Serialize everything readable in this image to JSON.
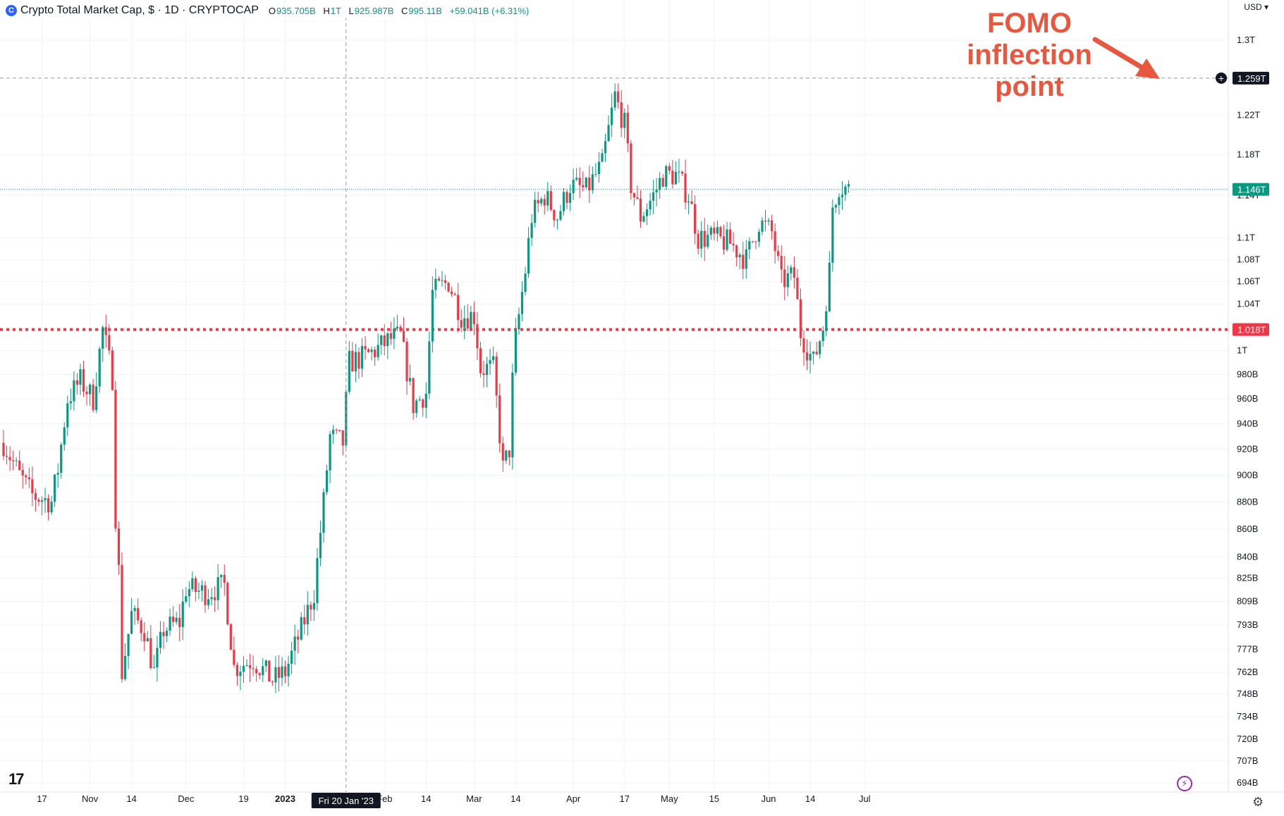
{
  "header": {
    "symbol_icon": "C",
    "title": "Crypto Total Market Cap, $ · 1D · CRYPTOCAP",
    "ohlc": [
      {
        "key": "O",
        "value": "935.705B"
      },
      {
        "key": "H",
        "value": "1T"
      },
      {
        "key": "L",
        "value": "925.987B"
      },
      {
        "key": "C",
        "value": "995.11B"
      },
      {
        "key": "",
        "value": "+59.041B (+6.31%)"
      }
    ]
  },
  "currency_label": "USD",
  "tradingview_logo": "17",
  "colors": {
    "up": "#089981",
    "down": "#f23645",
    "support": "#f23645",
    "annotation": "#e8573f"
  },
  "chart_data": {
    "type": "candlestick",
    "title": "Crypto Total Market Cap, $ · 1D · CRYPTOCAP",
    "xlabel": "",
    "ylabel": "",
    "date_range": [
      "2022-10-05",
      "2023-06-26"
    ],
    "ylim": [
      694,
      1300
    ],
    "y_scale": "log",
    "grid": true,
    "y_ticks": [
      {
        "value": 1300,
        "label": "1.3T"
      },
      {
        "value": 1220,
        "label": "1.22T"
      },
      {
        "value": 1180,
        "label": "1.18T"
      },
      {
        "value": 1140,
        "label": "1.14T"
      },
      {
        "value": 1100,
        "label": "1.1T"
      },
      {
        "value": 1080,
        "label": "1.08T"
      },
      {
        "value": 1060,
        "label": "1.06T"
      },
      {
        "value": 1040,
        "label": "1.04T"
      },
      {
        "value": 1000,
        "label": "1T"
      },
      {
        "value": 980,
        "label": "980B"
      },
      {
        "value": 960,
        "label": "960B"
      },
      {
        "value": 940,
        "label": "940B"
      },
      {
        "value": 920,
        "label": "920B"
      },
      {
        "value": 900,
        "label": "900B"
      },
      {
        "value": 880,
        "label": "880B"
      },
      {
        "value": 860,
        "label": "860B"
      },
      {
        "value": 840,
        "label": "840B"
      },
      {
        "value": 825,
        "label": "825B"
      },
      {
        "value": 809,
        "label": "809B"
      },
      {
        "value": 793,
        "label": "793B"
      },
      {
        "value": 777,
        "label": "777B"
      },
      {
        "value": 762,
        "label": "762B"
      },
      {
        "value": 748,
        "label": "748B"
      },
      {
        "value": 734,
        "label": "734B"
      },
      {
        "value": 720,
        "label": "720B"
      },
      {
        "value": 707,
        "label": "707B"
      },
      {
        "value": 694,
        "label": "694B"
      }
    ],
    "x_ticks": [
      {
        "date": "2022-10-17",
        "label": "17"
      },
      {
        "date": "2022-11-01",
        "label": "Nov"
      },
      {
        "date": "2022-11-14",
        "label": "14"
      },
      {
        "date": "2022-12-01",
        "label": "Dec"
      },
      {
        "date": "2022-12-19",
        "label": "19"
      },
      {
        "date": "2023-01-01",
        "label": "2023"
      },
      {
        "date": "2023-02-01",
        "label": "Feb"
      },
      {
        "date": "2023-02-14",
        "label": "14"
      },
      {
        "date": "2023-03-01",
        "label": "Mar"
      },
      {
        "date": "2023-03-14",
        "label": "14"
      },
      {
        "date": "2023-04-01",
        "label": "Apr"
      },
      {
        "date": "2023-04-17",
        "label": "17"
      },
      {
        "date": "2023-05-01",
        "label": "May"
      },
      {
        "date": "2023-05-15",
        "label": "15"
      },
      {
        "date": "2023-06-01",
        "label": "Jun"
      },
      {
        "date": "2023-06-14",
        "label": "14"
      },
      {
        "date": "2023-07-01",
        "label": "Jul"
      }
    ],
    "crosshair": {
      "date": "2023-01-20",
      "label": "Fri 20 Jan '23"
    },
    "price_lines": [
      {
        "value": 1259,
        "label": "1.259T",
        "style": "dashed",
        "color": "#9598a1"
      },
      {
        "value": 1146,
        "label": "1.146T",
        "style": "dotted",
        "color": "#089981"
      },
      {
        "value": 1018,
        "label": "1.018T",
        "style": "dotted-thick",
        "color": "#f23645"
      }
    ],
    "annotation": {
      "lines": [
        "FOMO",
        "inflection",
        "point"
      ]
    },
    "series": [
      {
        "name": "",
        "anchors": [
          {
            "date": "2022-10-05",
            "value": 925
          },
          {
            "date": "2022-10-10",
            "value": 900
          },
          {
            "date": "2022-10-14",
            "value": 885
          },
          {
            "date": "2022-10-20",
            "value": 880
          },
          {
            "date": "2022-10-22",
            "value": 905
          },
          {
            "date": "2022-10-25",
            "value": 960
          },
          {
            "date": "2022-10-29",
            "value": 975
          },
          {
            "date": "2022-11-02",
            "value": 960
          },
          {
            "date": "2022-11-05",
            "value": 1018
          },
          {
            "date": "2022-11-08",
            "value": 978
          },
          {
            "date": "2022-11-09",
            "value": 870
          },
          {
            "date": "2022-11-10",
            "value": 830
          },
          {
            "date": "2022-11-11",
            "value": 762
          },
          {
            "date": "2022-11-14",
            "value": 800
          },
          {
            "date": "2022-11-18",
            "value": 790
          },
          {
            "date": "2022-11-21",
            "value": 762
          },
          {
            "date": "2022-11-24",
            "value": 790
          },
          {
            "date": "2022-11-29",
            "value": 795
          },
          {
            "date": "2022-12-01",
            "value": 818
          },
          {
            "date": "2022-12-07",
            "value": 815
          },
          {
            "date": "2022-12-13",
            "value": 820
          },
          {
            "date": "2022-12-16",
            "value": 765
          },
          {
            "date": "2022-12-22",
            "value": 770
          },
          {
            "date": "2022-12-28",
            "value": 757
          },
          {
            "date": "2023-01-01",
            "value": 762
          },
          {
            "date": "2023-01-06",
            "value": 790
          },
          {
            "date": "2023-01-10",
            "value": 815
          },
          {
            "date": "2023-01-13",
            "value": 880
          },
          {
            "date": "2023-01-15",
            "value": 930
          },
          {
            "date": "2023-01-19",
            "value": 925
          },
          {
            "date": "2023-01-21",
            "value": 990
          },
          {
            "date": "2023-01-26",
            "value": 995
          },
          {
            "date": "2023-01-29",
            "value": 1000
          },
          {
            "date": "2023-02-03",
            "value": 1010
          },
          {
            "date": "2023-02-06",
            "value": 1012
          },
          {
            "date": "2023-02-10",
            "value": 955
          },
          {
            "date": "2023-02-14",
            "value": 965
          },
          {
            "date": "2023-02-16",
            "value": 1050
          },
          {
            "date": "2023-02-21",
            "value": 1060
          },
          {
            "date": "2023-02-25",
            "value": 1030
          },
          {
            "date": "2023-03-01",
            "value": 1030
          },
          {
            "date": "2023-03-03",
            "value": 985
          },
          {
            "date": "2023-03-07",
            "value": 985
          },
          {
            "date": "2023-03-10",
            "value": 905
          },
          {
            "date": "2023-03-12",
            "value": 920
          },
          {
            "date": "2023-03-13",
            "value": 975
          },
          {
            "date": "2023-03-14",
            "value": 1010
          },
          {
            "date": "2023-03-17",
            "value": 1070
          },
          {
            "date": "2023-03-19",
            "value": 1120
          },
          {
            "date": "2023-03-23",
            "value": 1140
          },
          {
            "date": "2023-03-27",
            "value": 1120
          },
          {
            "date": "2023-03-31",
            "value": 1150
          },
          {
            "date": "2023-04-05",
            "value": 1145
          },
          {
            "date": "2023-04-10",
            "value": 1170
          },
          {
            "date": "2023-04-14",
            "value": 1240
          },
          {
            "date": "2023-04-17",
            "value": 1210
          },
          {
            "date": "2023-04-19",
            "value": 1150
          },
          {
            "date": "2023-04-22",
            "value": 1120
          },
          {
            "date": "2023-04-26",
            "value": 1140
          },
          {
            "date": "2023-04-29",
            "value": 1160
          },
          {
            "date": "2023-05-03",
            "value": 1160
          },
          {
            "date": "2023-05-07",
            "value": 1140
          },
          {
            "date": "2023-05-10",
            "value": 1100
          },
          {
            "date": "2023-05-14",
            "value": 1100
          },
          {
            "date": "2023-05-20",
            "value": 1095
          },
          {
            "date": "2023-05-25",
            "value": 1080
          },
          {
            "date": "2023-05-29",
            "value": 1115
          },
          {
            "date": "2023-06-02",
            "value": 1105
          },
          {
            "date": "2023-06-05",
            "value": 1060
          },
          {
            "date": "2023-06-09",
            "value": 1065
          },
          {
            "date": "2023-06-11",
            "value": 1015
          },
          {
            "date": "2023-06-15",
            "value": 990
          },
          {
            "date": "2023-06-18",
            "value": 1020
          },
          {
            "date": "2023-06-20",
            "value": 1070
          },
          {
            "date": "2023-06-21",
            "value": 1130
          },
          {
            "date": "2023-06-23",
            "value": 1150
          },
          {
            "date": "2023-06-26",
            "value": 1146
          }
        ]
      }
    ]
  }
}
